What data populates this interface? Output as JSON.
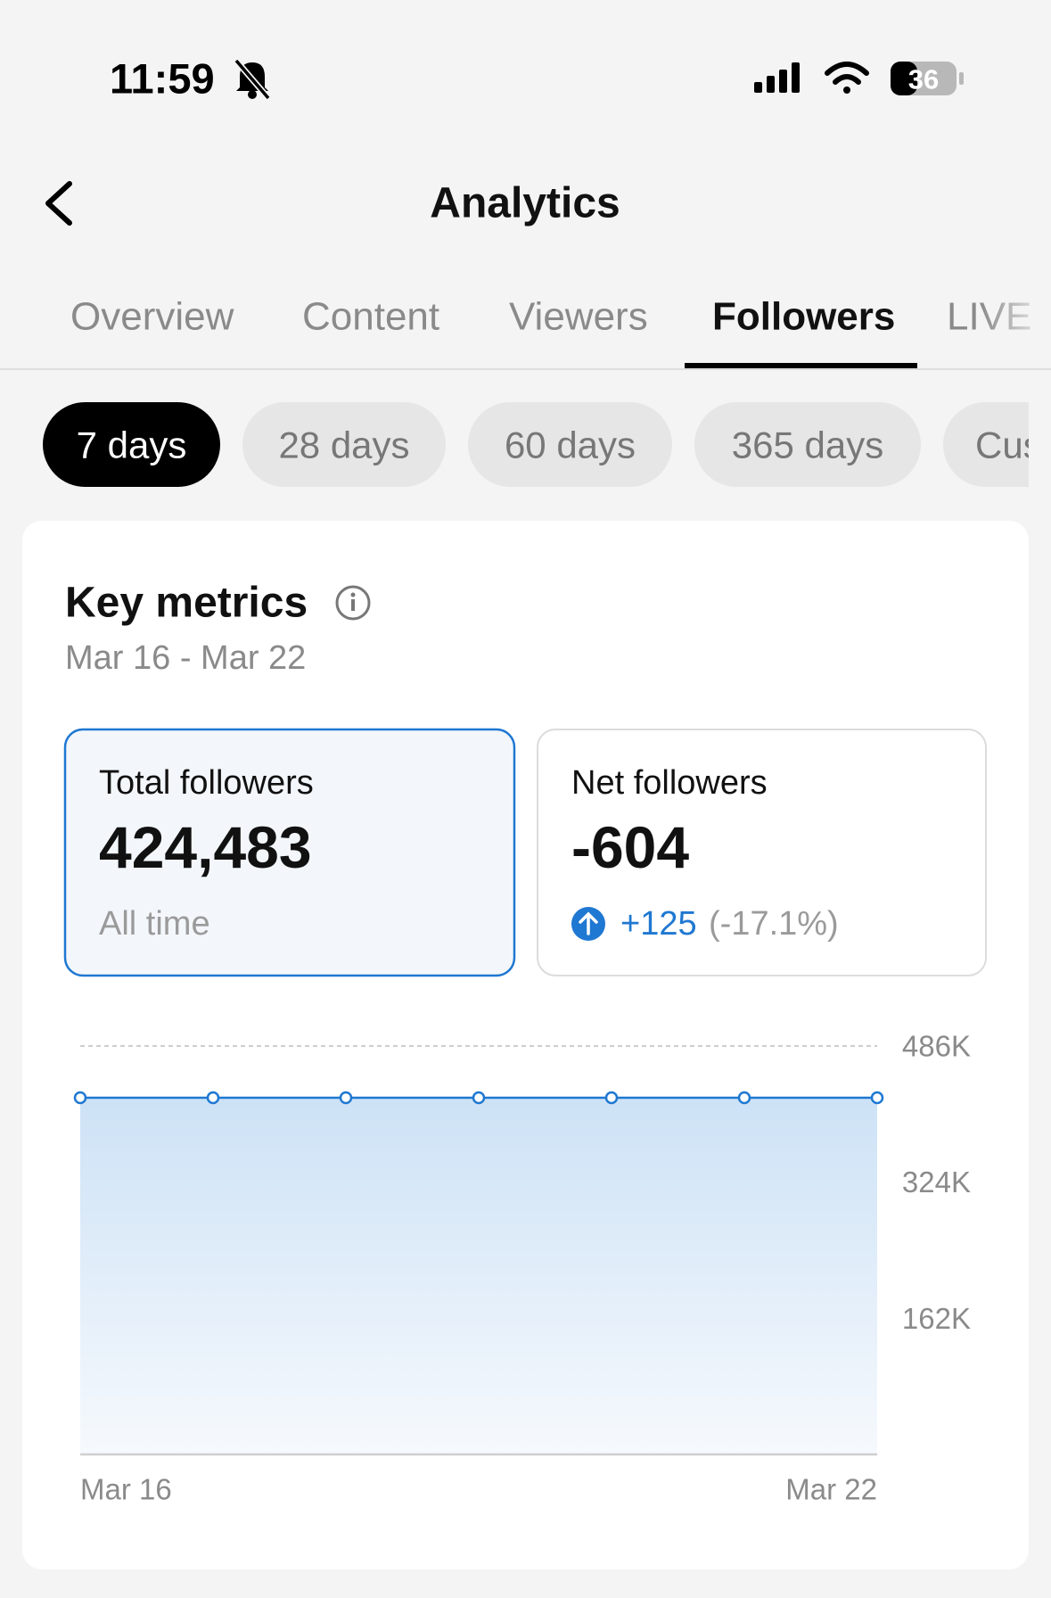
{
  "status_bar": {
    "time": "11:59",
    "battery": "36"
  },
  "header": {
    "title": "Analytics"
  },
  "tabs": [
    "Overview",
    "Content",
    "Viewers",
    "Followers",
    "LIVE"
  ],
  "periods": [
    "7 days",
    "28 days",
    "60 days",
    "365 days",
    "Custom"
  ],
  "card": {
    "title": "Key metrics",
    "date_range": "Mar 16 - Mar 22",
    "metrics": [
      {
        "label": "Total followers",
        "value": "424,483",
        "note": "All time"
      },
      {
        "label": "Net followers",
        "value": "-604",
        "change": "+125",
        "change_pct": "(-17.1%)"
      }
    ]
  },
  "chart_data": {
    "type": "area",
    "categories": [
      "Mar 16",
      null,
      null,
      null,
      null,
      null,
      "Mar 22"
    ],
    "values": [
      424483,
      424483,
      424483,
      424483,
      424483,
      424483,
      424483
    ],
    "color": "#1f78d1",
    "ylim": [
      0,
      486000
    ],
    "yticks": [
      {
        "value": 162000,
        "label": "162K"
      },
      {
        "value": 324000,
        "label": "324K"
      },
      {
        "value": 486000,
        "label": "486K"
      }
    ],
    "grid": true
  }
}
